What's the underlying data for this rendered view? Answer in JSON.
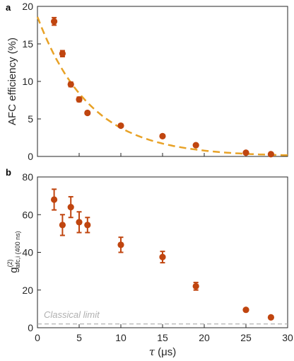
{
  "colors": {
    "marker": "#c0450f",
    "fit": "#e8a227",
    "limit": "#aaaaaa",
    "axis": "#262626"
  },
  "chart_data": [
    {
      "panel": "a",
      "type": "scatter",
      "ylabel": "AFC efficiency (%)",
      "xlim": [
        0,
        30
      ],
      "ylim": [
        0,
        20
      ],
      "xticks": [
        0,
        5,
        10,
        15,
        20,
        25,
        30
      ],
      "yticks": [
        0,
        5,
        10,
        15,
        20
      ],
      "show_xtick_labels": false,
      "series": [
        {
          "x": [
            2,
            3,
            4,
            5,
            6,
            10,
            15,
            19,
            25,
            28
          ],
          "y": [
            18.0,
            13.7,
            9.6,
            7.6,
            5.8,
            4.1,
            2.7,
            1.5,
            0.5,
            0.3
          ],
          "err": [
            0.5,
            0.4,
            0.3,
            0.3,
            0.2,
            0.2,
            0.2,
            0.1,
            0.1,
            0.1
          ]
        }
      ],
      "fit": {
        "style": "dashed",
        "model": "exponential",
        "amplitude": 18.6,
        "decay": 6.3
      }
    },
    {
      "panel": "b",
      "type": "scatter",
      "ylabel_main": "g",
      "ylabel_sup": "(2)",
      "ylabel_sub": "afc,i (400 ns)",
      "xlabel_sym": "τ",
      "xlabel_unit": "(μs)",
      "xlim": [
        0,
        30
      ],
      "ylim": [
        0,
        80
      ],
      "xticks": [
        0,
        5,
        10,
        15,
        20,
        25,
        30
      ],
      "yticks": [
        0,
        20,
        40,
        60,
        80
      ],
      "series": [
        {
          "x": [
            2,
            3,
            4,
            5,
            6,
            10,
            15,
            19,
            25,
            28
          ],
          "y": [
            68,
            54.5,
            64,
            56,
            54.5,
            44,
            37.5,
            22,
            9.5,
            5.5
          ],
          "err": [
            5.5,
            5.5,
            5.5,
            5.5,
            4,
            4,
            3,
            2,
            0,
            0
          ]
        }
      ],
      "reference_line": {
        "y": 2,
        "label": "Classical limit"
      }
    }
  ]
}
